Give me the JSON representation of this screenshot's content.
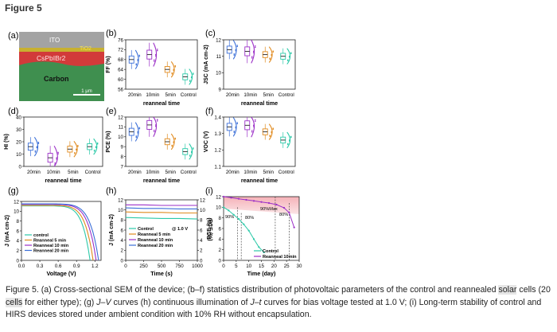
{
  "figure_label": "Figure 5",
  "colors": {
    "cond20": "#3b6fd8",
    "cond10": "#9b2fc7",
    "cond5": "#e08a1e",
    "control": "#2bc9a8"
  },
  "panel_a": {
    "label": "(a)",
    "layers": {
      "ito": "ITO",
      "tio2": "TiO2",
      "perovskite": "CsPbIBr2",
      "carbon": "Carbon"
    },
    "scalebar": "1 μm"
  },
  "panels": {
    "b": {
      "label": "(b)",
      "ylabel": "FF (%)",
      "yticks": [
        "56",
        "60",
        "64",
        "68",
        "72",
        "76"
      ],
      "xlabel": "reanneal time"
    },
    "c": {
      "label": "(c)",
      "ylabel": "JSC (mA cm-2)",
      "yticks": [
        "9",
        "10",
        "11",
        "12"
      ],
      "xlabel": "reanneal time"
    },
    "d": {
      "label": "(d)",
      "ylabel": "HI (%)",
      "yticks": [
        "0",
        "10",
        "20",
        "30",
        "40"
      ],
      "xlabel": "reanneal time"
    },
    "e": {
      "label": "(e)",
      "ylabel": "PCE (%)",
      "yticks": [
        "7",
        "8",
        "9",
        "10",
        "11",
        "12"
      ],
      "xlabel": "reanneal time"
    },
    "f": {
      "label": "(f)",
      "ylabel": "VOC (V)",
      "yticks": [
        "1.1",
        "1.2",
        "1.3",
        "1.4"
      ],
      "xlabel": "reanneal time"
    },
    "g": {
      "label": "(g)"
    },
    "h": {
      "label": "(h)"
    },
    "i": {
      "label": "(i)"
    }
  },
  "conditions": [
    "20min",
    "10min",
    "5min",
    "Control"
  ],
  "chart_data": [
    {
      "panel": "b",
      "type": "box-violin",
      "ylabel": "FF (%)",
      "xlabel": "reanneal time",
      "categories": [
        "20min",
        "10min",
        "5min",
        "Control"
      ],
      "ylim": [
        56,
        76
      ],
      "medians": [
        68,
        70,
        64,
        61
      ]
    },
    {
      "panel": "c",
      "type": "box-violin",
      "ylabel": "JSC (mA cm-2)",
      "xlabel": "reanneal time",
      "categories": [
        "20min",
        "10min",
        "5min",
        "Control"
      ],
      "ylim": [
        9,
        12
      ],
      "medians": [
        11.4,
        11.3,
        11.1,
        11.0
      ]
    },
    {
      "panel": "d",
      "type": "box-violin",
      "ylabel": "HI (%)",
      "xlabel": "reanneal time",
      "categories": [
        "20min",
        "10min",
        "5min",
        "Control"
      ],
      "ylim": [
        0,
        40
      ],
      "medians": [
        16,
        7,
        14,
        16
      ]
    },
    {
      "panel": "e",
      "type": "box-violin",
      "ylabel": "PCE (%)",
      "xlabel": "reanneal time",
      "categories": [
        "20min",
        "10min",
        "5min",
        "Control"
      ],
      "ylim": [
        7,
        12
      ],
      "medians": [
        10.5,
        11.2,
        9.5,
        8.5
      ]
    },
    {
      "panel": "f",
      "type": "box-violin",
      "ylabel": "VOC (V)",
      "xlabel": "reanneal time",
      "categories": [
        "20min",
        "10min",
        "5min",
        "Control"
      ],
      "ylim": [
        1.1,
        1.4
      ],
      "medians": [
        1.34,
        1.35,
        1.31,
        1.26
      ]
    },
    {
      "panel": "g",
      "type": "line",
      "xlabel": "Voltage (V)",
      "ylabel": "J (mA cm-2)",
      "xlim": [
        0,
        1.3
      ],
      "ylim": [
        0,
        12
      ],
      "xticks": [
        "0.0",
        "0.3",
        "0.6",
        "0.9",
        "1.2"
      ],
      "yticks": [
        "0",
        "2",
        "4",
        "6",
        "8",
        "10",
        "12"
      ],
      "series": [
        {
          "name": "control",
          "jsc": 11.1,
          "voc": 1.12
        },
        {
          "name": "Reanneal 5 min",
          "jsc": 11.2,
          "voc": 1.17
        },
        {
          "name": "Reanneal 10 min",
          "jsc": 11.4,
          "voc": 1.22
        },
        {
          "name": "Reanneal 20 min",
          "jsc": 11.5,
          "voc": 1.26
        }
      ]
    },
    {
      "panel": "h",
      "type": "line",
      "xlabel": "Time (s)",
      "ylabel": "J (mA cm-2)",
      "ylabel_right": "PCE (%)",
      "annotation": "@ 1.0 V",
      "xlim": [
        0,
        1000
      ],
      "ylim": [
        0,
        12
      ],
      "xticks": [
        "0",
        "250",
        "500",
        "750",
        "1000"
      ],
      "yticks": [
        "0",
        "2",
        "4",
        "6",
        "8",
        "10",
        "12"
      ],
      "yticks_right": [
        "0",
        "2",
        "4",
        "6",
        "8",
        "10",
        "12"
      ],
      "series": [
        {
          "name": "Control",
          "values": [
            8.5,
            8.4,
            8.3,
            8.3,
            8.2
          ]
        },
        {
          "name": "Reanneal 5 min",
          "values": [
            9.6,
            9.5,
            9.5,
            9.4,
            9.4
          ]
        },
        {
          "name": "Reanneal 10 min",
          "values": [
            11.0,
            11.0,
            10.9,
            10.9,
            10.9
          ]
        },
        {
          "name": "Reanneal 20 min",
          "values": [
            10.4,
            10.3,
            10.3,
            10.2,
            10.2
          ]
        }
      ]
    },
    {
      "panel": "i",
      "type": "line",
      "xlabel": "Time (day)",
      "ylabel": "PCE (%)",
      "xlim": [
        0,
        30
      ],
      "ylim": [
        0,
        12
      ],
      "xticks": [
        "0",
        "5",
        "10",
        "15",
        "20",
        "25",
        "30"
      ],
      "yticks": [
        "0",
        "2",
        "4",
        "6",
        "8",
        "10",
        "12"
      ],
      "annotations": [
        "90%",
        "80%",
        "90%Max",
        "80%"
      ],
      "series": [
        {
          "name": "Control",
          "x": [
            0,
            2,
            4,
            6,
            8,
            10,
            12,
            14,
            16
          ],
          "values": [
            10.0,
            9.4,
            8.6,
            7.8,
            6.8,
            5.6,
            4.0,
            2.5,
            1.5
          ]
        },
        {
          "name": "Reanneal 10min",
          "x": [
            0,
            3,
            6,
            9,
            12,
            15,
            18,
            21,
            24,
            26,
            28
          ],
          "values": [
            12.0,
            11.8,
            11.6,
            11.4,
            11.2,
            11.0,
            10.8,
            10.5,
            9.9,
            9.0,
            6.2
          ]
        }
      ]
    }
  ],
  "caption": {
    "p1": "Figure 5. (a) Cross-sectional SEM of the device; (b–f) statistics distribution of photovoltaic parameters of the control and reannealed",
    "hl1": "solar",
    "p2": "cells (20",
    "hl2": "cells",
    "p3": "for either type); (g)",
    "j": "J",
    "dash": "–",
    "v": "V",
    "p4": "curves (h) continuous illumination of",
    "jt": "J–t",
    "p5": "curves for bias voltage tested at 1.0 V; (i) Long-term stability of control and HIRS devices stored under ambient condition with 10% RH without encapsulation."
  }
}
